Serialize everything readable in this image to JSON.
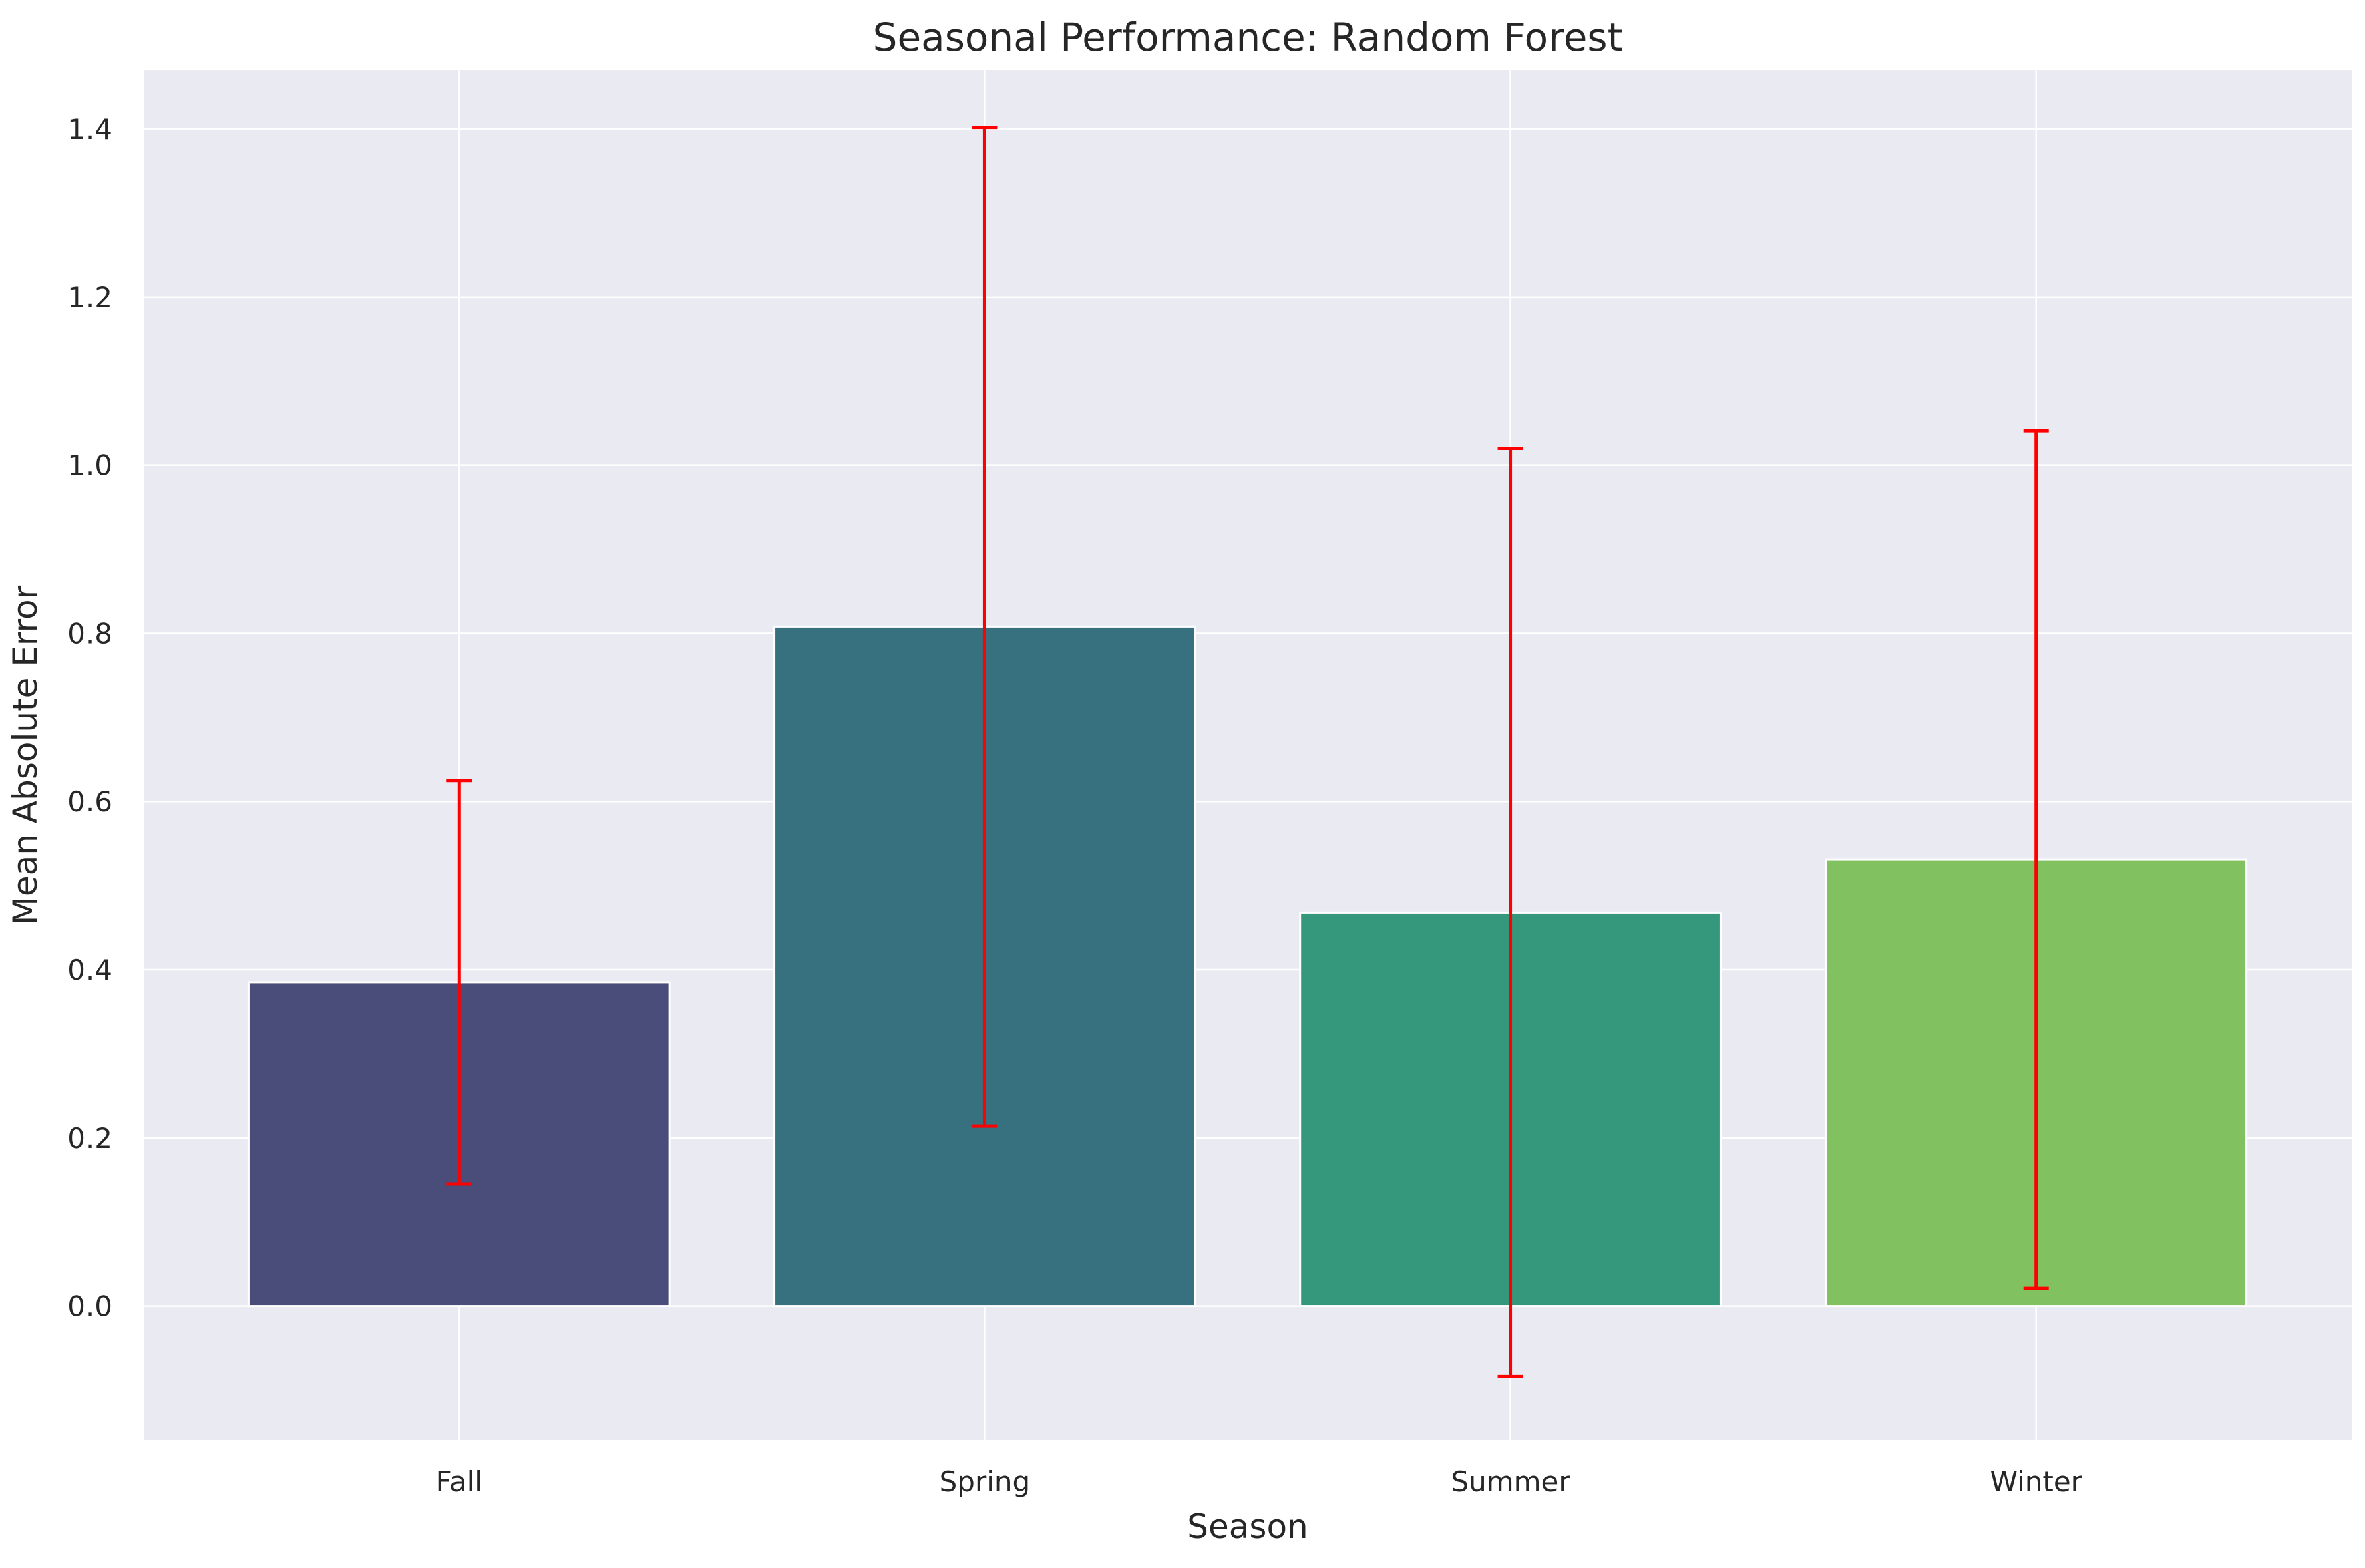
{
  "chart_data": {
    "type": "bar",
    "title": "Seasonal Performance: Random Forest",
    "xlabel": "Season",
    "ylabel": "Mean Absolute Error",
    "categories": [
      "Fall",
      "Spring",
      "Summer",
      "Winter"
    ],
    "values": [
      0.385,
      0.808,
      0.468,
      0.531
    ],
    "error": [
      0.24,
      0.594,
      0.552,
      0.51
    ],
    "bar_colors": [
      "#4a4c7a",
      "#37717f",
      "#35977b",
      "#82c160"
    ],
    "error_color": "#ff0000",
    "ylim": [
      -0.16,
      1.47
    ],
    "yticks": [
      "0.0",
      "0.2",
      "0.4",
      "0.6",
      "0.8",
      "1.0",
      "1.2",
      "1.4"
    ],
    "grid": true,
    "background": "#eaeaf2"
  }
}
